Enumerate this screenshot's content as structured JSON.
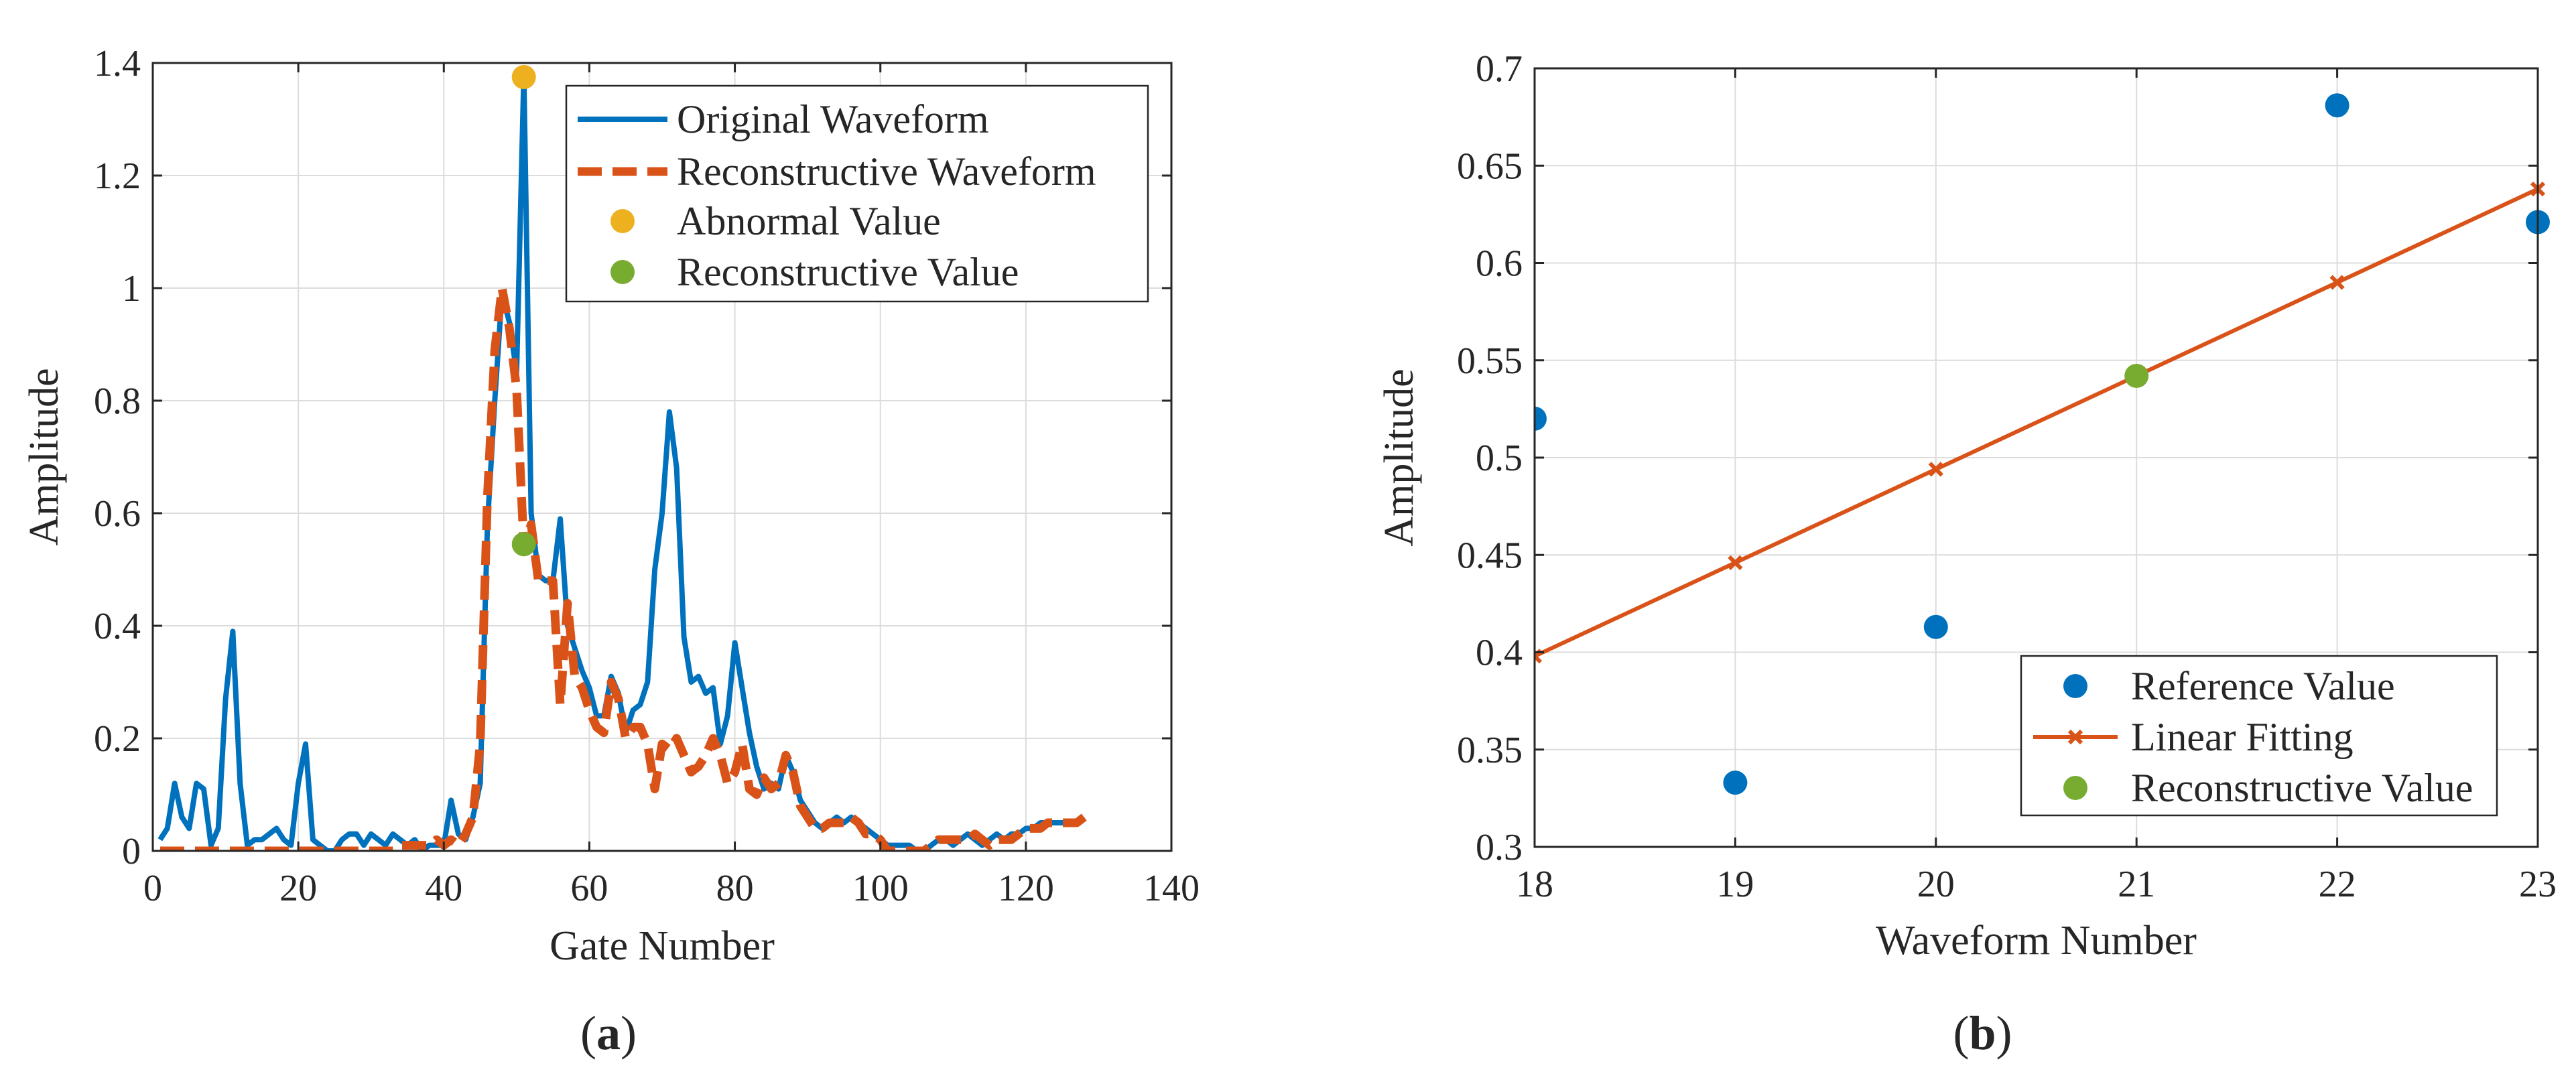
{
  "chart_data": [
    {
      "type": "line",
      "panel_label_open": "(",
      "panel_label_letter": "a",
      "panel_label_close": ")",
      "xlabel": "Gate Number",
      "ylabel": "Amplitude",
      "xlim": [
        0,
        140
      ],
      "ylim": [
        0,
        1.4
      ],
      "xticks": [
        "0",
        "20",
        "40",
        "60",
        "80",
        "100",
        "120",
        "140"
      ],
      "yticks": [
        "0",
        "0.2",
        "0.4",
        "0.6",
        "0.8",
        "1",
        "1.2",
        "1.4"
      ],
      "xtick_values": [
        0,
        20,
        40,
        60,
        80,
        100,
        120,
        140
      ],
      "ytick_values": [
        0,
        0.2,
        0.4,
        0.6,
        0.8,
        1.0,
        1.2,
        1.4
      ],
      "grid": true,
      "legend_position": "top-right",
      "series": [
        {
          "name": "Original Waveform",
          "style": "solid",
          "color": "#0072BD",
          "x": [
            1,
            2,
            3,
            4,
            5,
            6,
            7,
            8,
            9,
            10,
            11,
            12,
            13,
            14,
            15,
            16,
            17,
            18,
            19,
            20,
            21,
            22,
            23,
            24,
            25,
            26,
            27,
            28,
            29,
            30,
            31,
            32,
            33,
            34,
            35,
            36,
            37,
            38,
            39,
            40,
            41,
            42,
            43,
            44,
            45,
            46,
            47,
            48,
            49,
            50,
            51,
            52,
            53,
            54,
            55,
            56,
            57,
            58,
            59,
            60,
            61,
            62,
            63,
            64,
            65,
            66,
            67,
            68,
            69,
            70,
            71,
            72,
            73,
            74,
            75,
            76,
            77,
            78,
            79,
            80,
            81,
            82,
            83,
            84,
            85,
            86,
            87,
            88,
            89,
            90,
            91,
            92,
            93,
            94,
            95,
            96,
            97,
            98,
            99,
            100,
            101,
            102,
            103,
            104,
            105,
            106,
            107,
            108,
            109,
            110,
            111,
            112,
            113,
            114,
            115,
            116,
            117,
            118,
            119,
            120,
            121,
            122,
            123,
            124,
            125,
            126,
            127,
            128
          ],
          "y": [
            0.02,
            0.04,
            0.12,
            0.06,
            0.04,
            0.12,
            0.11,
            0.01,
            0.04,
            0.27,
            0.39,
            0.12,
            0.01,
            0.02,
            0.02,
            0.03,
            0.04,
            0.02,
            0.01,
            0.12,
            0.19,
            0.02,
            0.01,
            0,
            0,
            0.02,
            0.03,
            0.03,
            0.01,
            0.03,
            0.02,
            0.01,
            0.03,
            0.02,
            0.01,
            0.02,
            0,
            0.01,
            0.01,
            0.01,
            0.09,
            0.03,
            0.02,
            0.06,
            0.12,
            0.58,
            0.8,
            0.99,
            0.94,
            0.85,
            1.38,
            0.6,
            0.49,
            0.48,
            0.48,
            0.59,
            0.4,
            0.36,
            0.32,
            0.29,
            0.24,
            0.24,
            0.31,
            0.28,
            0.21,
            0.25,
            0.26,
            0.3,
            0.5,
            0.6,
            0.78,
            0.68,
            0.38,
            0.3,
            0.31,
            0.28,
            0.29,
            0.19,
            0.24,
            0.37,
            0.29,
            0.21,
            0.15,
            0.11,
            0.12,
            0.11,
            0.17,
            0.14,
            0.09,
            0.07,
            0.05,
            0.04,
            0.05,
            0.06,
            0.05,
            0.06,
            0.05,
            0.04,
            0.03,
            0.02,
            0.01,
            0.01,
            0.01,
            0.01,
            0,
            0,
            0.01,
            0.02,
            0.02,
            0.01,
            0.02,
            0.03,
            0.02,
            0.01,
            0.02,
            0.03,
            0.02,
            0.03,
            0.03,
            0.04,
            0.04,
            0.05,
            0.05,
            0.05,
            0.05,
            0.05,
            0.05,
            0.06
          ]
        },
        {
          "name": "Reconstructive Waveform",
          "style": "dashed",
          "color": "#D95319",
          "x": [
            1,
            2,
            3,
            4,
            5,
            6,
            7,
            8,
            9,
            10,
            11,
            12,
            13,
            14,
            15,
            16,
            17,
            18,
            19,
            20,
            21,
            22,
            23,
            24,
            25,
            26,
            27,
            28,
            29,
            30,
            31,
            32,
            33,
            34,
            35,
            36,
            37,
            38,
            39,
            40,
            41,
            42,
            43,
            44,
            45,
            46,
            47,
            48,
            49,
            50,
            51,
            52,
            53,
            54,
            55,
            56,
            57,
            58,
            59,
            60,
            61,
            62,
            63,
            64,
            65,
            66,
            67,
            68,
            69,
            70,
            71,
            72,
            73,
            74,
            75,
            76,
            77,
            78,
            79,
            80,
            81,
            82,
            83,
            84,
            85,
            86,
            87,
            88,
            89,
            90,
            91,
            92,
            93,
            94,
            95,
            96,
            97,
            98,
            99,
            100,
            101,
            102,
            103,
            104,
            105,
            106,
            107,
            108,
            109,
            110,
            111,
            112,
            113,
            114,
            115,
            116,
            117,
            118,
            119,
            120,
            121,
            122,
            123,
            124,
            125,
            126,
            127,
            128
          ],
          "y": [
            0,
            0,
            0,
            0,
            0,
            0,
            0,
            0,
            0,
            0,
            0,
            0,
            0,
            0,
            0,
            0,
            0,
            0,
            0,
            0,
            0,
            0,
            0,
            0,
            0,
            0,
            0,
            0,
            0,
            0,
            0,
            0,
            0,
            0.01,
            0.01,
            0.01,
            0.01,
            0.01,
            0.02,
            0.01,
            0.02,
            0.01,
            0.03,
            0.06,
            0.19,
            0.63,
            0.89,
            1.0,
            0.93,
            0.82,
            0.54,
            0.58,
            0.48,
            0.48,
            0.48,
            0.26,
            0.44,
            0.31,
            0.29,
            0.25,
            0.22,
            0.21,
            0.3,
            0.27,
            0.2,
            0.22,
            0.22,
            0.19,
            0.11,
            0.19,
            0.18,
            0.2,
            0.17,
            0.14,
            0.15,
            0.17,
            0.2,
            0.17,
            0.12,
            0.14,
            0.19,
            0.11,
            0.1,
            0.13,
            0.11,
            0.12,
            0.17,
            0.14,
            0.08,
            0.06,
            0.04,
            0.04,
            0.05,
            0.05,
            0.05,
            0.06,
            0.05,
            0.03,
            0.03,
            0.02,
            0,
            0,
            0,
            0,
            0,
            0,
            0.01,
            0.02,
            0.02,
            0.02,
            0.02,
            0.02,
            0.03,
            0.02,
            0.01,
            0.02,
            0.02,
            0.02,
            0.03,
            0.04,
            0.04,
            0.04,
            0.05,
            0.05,
            0.05,
            0.05,
            0.05,
            0.06
          ]
        }
      ],
      "points": [
        {
          "name": "Abnormal Value",
          "color": "#EDB120",
          "x": 51,
          "y": 1.375
        },
        {
          "name": "Reconstructive Value",
          "color": "#77AC30",
          "x": 51,
          "y": 0.545
        }
      ],
      "legend": [
        "Original Waveform",
        "Reconstructive Waveform",
        "Abnormal Value",
        "Reconstructive Value"
      ]
    },
    {
      "type": "scatter",
      "panel_label_open": "(",
      "panel_label_letter": "b",
      "panel_label_close": ")",
      "xlabel": "Waveform Number",
      "ylabel": "Amplitude",
      "xlim": [
        18,
        23
      ],
      "ylim": [
        0.3,
        0.7
      ],
      "xticks": [
        "18",
        "19",
        "20",
        "21",
        "22",
        "23"
      ],
      "yticks": [
        "0.3",
        "0.35",
        "0.4",
        "0.45",
        "0.5",
        "0.55",
        "0.6",
        "0.65",
        "0.7"
      ],
      "xtick_values": [
        18,
        19,
        20,
        21,
        22,
        23
      ],
      "ytick_values": [
        0.3,
        0.35,
        0.4,
        0.45,
        0.5,
        0.55,
        0.6,
        0.65,
        0.7
      ],
      "grid": true,
      "legend_position": "bottom-right",
      "series": [
        {
          "name": "Reference Value",
          "style": "marker",
          "color": "#0072BD",
          "x": [
            18,
            19,
            20,
            22,
            23
          ],
          "y": [
            0.52,
            0.333,
            0.413,
            0.681,
            0.621
          ]
        },
        {
          "name": "Linear Fitting",
          "style": "line-x",
          "color": "#D95319",
          "x": [
            18,
            19,
            20,
            21,
            22,
            23
          ],
          "y": [
            0.398,
            0.446,
            0.494,
            0.542,
            0.59,
            0.638
          ]
        },
        {
          "name": "Reconstructive Value",
          "style": "marker",
          "color": "#77AC30",
          "x": [
            21
          ],
          "y": [
            0.542
          ]
        }
      ],
      "legend": [
        "Reference Value",
        "Linear Fitting",
        "Reconstructive Value"
      ]
    }
  ]
}
